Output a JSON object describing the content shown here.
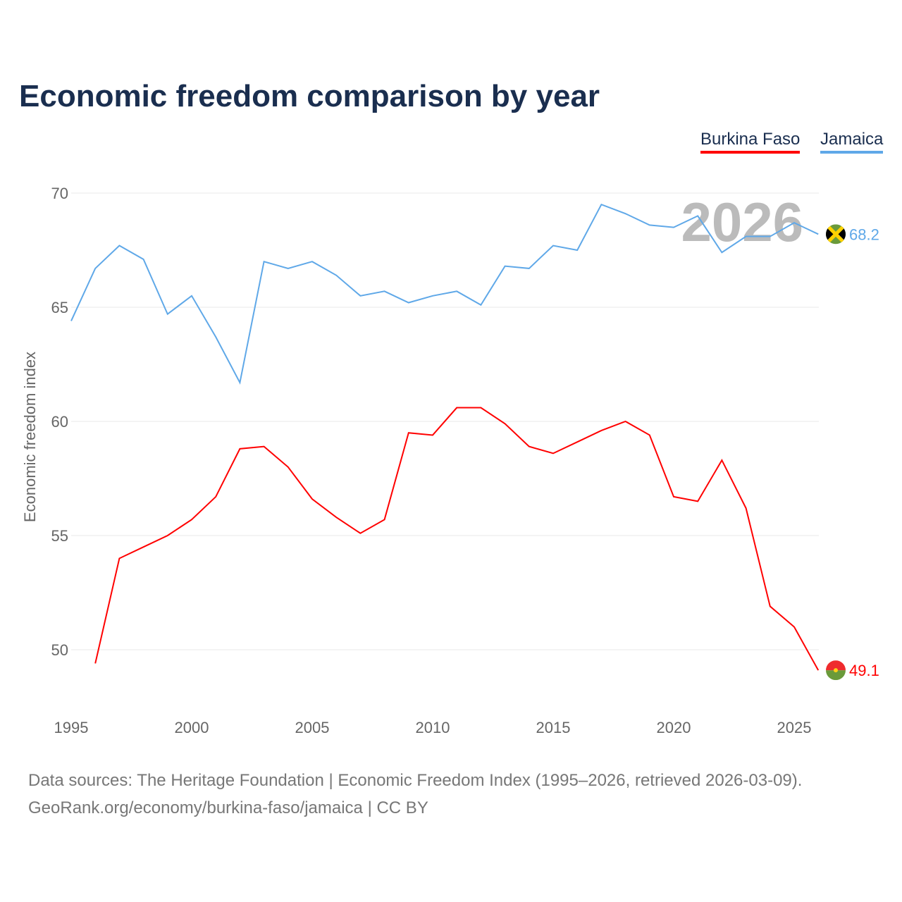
{
  "title": "Economic freedom comparison by year",
  "footer": {
    "line1": "Data sources: The Heritage Foundation | Economic Freedom Index (1995–2026, retrieved 2026-03-09).",
    "line2": "GeoRank.org/economy/burkina-faso/jamaica | CC BY"
  },
  "chart_data": {
    "type": "line",
    "title": "Economic freedom comparison by year",
    "ylabel": "Economic freedom index",
    "xlabel": "",
    "year_watermark": "2026",
    "ylim": [
      47.5,
      71
    ],
    "xlim": [
      1995,
      2026
    ],
    "yticks": [
      50,
      55,
      60,
      65,
      70
    ],
    "xticks": [
      1995,
      2000,
      2005,
      2010,
      2015,
      2020,
      2025
    ],
    "legend": "top-right",
    "x": [
      1995,
      1996,
      1997,
      1998,
      1999,
      2000,
      2001,
      2002,
      2003,
      2004,
      2005,
      2006,
      2007,
      2008,
      2009,
      2010,
      2011,
      2012,
      2013,
      2014,
      2015,
      2016,
      2017,
      2018,
      2019,
      2020,
      2021,
      2022,
      2023,
      2024,
      2025,
      2026
    ],
    "series": [
      {
        "name": "Burkina Faso",
        "color": "#ff0000",
        "end_label": "49.1",
        "flag": "burkina-faso-flag",
        "values": [
          null,
          49.4,
          54.0,
          54.5,
          55.0,
          55.7,
          56.7,
          58.8,
          58.9,
          58.0,
          56.6,
          55.8,
          55.1,
          55.7,
          59.5,
          59.4,
          60.6,
          60.6,
          59.9,
          58.9,
          58.6,
          59.1,
          59.6,
          60.0,
          59.4,
          56.7,
          56.5,
          58.3,
          56.2,
          51.9,
          51.0,
          49.1
        ]
      },
      {
        "name": "Jamaica",
        "color": "#5fa8e8",
        "end_label": "68.2",
        "flag": "jamaica-flag",
        "values": [
          64.4,
          66.7,
          67.7,
          67.1,
          64.7,
          65.5,
          63.7,
          61.7,
          67.0,
          66.7,
          67.0,
          66.4,
          65.5,
          65.7,
          65.2,
          65.5,
          65.7,
          65.1,
          66.8,
          66.7,
          67.7,
          67.5,
          69.5,
          69.1,
          68.6,
          68.5,
          69.0,
          67.4,
          68.1,
          68.1,
          68.7,
          68.2
        ]
      }
    ]
  }
}
